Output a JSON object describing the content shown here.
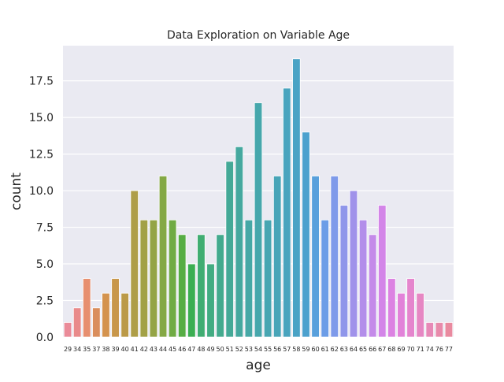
{
  "chart_data": {
    "type": "bar",
    "title": "Data Exploration on Variable Age",
    "xlabel": "age",
    "ylabel": "count",
    "categories": [
      "29",
      "34",
      "35",
      "37",
      "38",
      "39",
      "40",
      "41",
      "42",
      "43",
      "44",
      "45",
      "46",
      "47",
      "48",
      "49",
      "50",
      "51",
      "52",
      "53",
      "54",
      "55",
      "56",
      "57",
      "58",
      "59",
      "60",
      "61",
      "62",
      "63",
      "64",
      "65",
      "66",
      "67",
      "68",
      "69",
      "70",
      "71",
      "74",
      "76",
      "77"
    ],
    "values": [
      1,
      2,
      4,
      2,
      3,
      4,
      3,
      10,
      8,
      8,
      11,
      8,
      7,
      5,
      7,
      5,
      7,
      12,
      13,
      8,
      16,
      8,
      11,
      17,
      19,
      14,
      11,
      8,
      11,
      9,
      10,
      8,
      7,
      9,
      4,
      3,
      4,
      3,
      1,
      1,
      1
    ],
    "ylim": [
      0,
      19.9
    ],
    "yticks": [
      0.0,
      2.5,
      5.0,
      7.5,
      10.0,
      12.5,
      15.0,
      17.5
    ],
    "ytick_labels": [
      "0.0",
      "2.5",
      "5.0",
      "7.5",
      "10.0",
      "12.5",
      "15.0",
      "17.5"
    ],
    "grid": true,
    "colors": {
      "plot_background": "#eaeaf2",
      "grid": "#ffffff",
      "bar_edge": "#ffffff",
      "palette": [
        "#ea8b99",
        "#e98a8a",
        "#e78f6f",
        "#da8e5c",
        "#d4934e",
        "#c8974a",
        "#bb9a48",
        "#ae9e48",
        "#a2a146",
        "#94a446",
        "#84a845",
        "#70ab44",
        "#56ad44",
        "#3bae52",
        "#40ad72",
        "#42ac82",
        "#43aa8e",
        "#44a997",
        "#45a89f",
        "#46a8a6",
        "#46a7ac",
        "#47a6b2",
        "#48a5b8",
        "#49a4be",
        "#4aa3c5",
        "#4ca1ce",
        "#58a0dc",
        "#6c9de7",
        "#7e9aea",
        "#8f96ea",
        "#a092ea",
        "#b38eea",
        "#c48ae9",
        "#d385e8",
        "#dc82e2",
        "#e282d9",
        "#e585cd",
        "#e687c3",
        "#e789b7",
        "#e88aab",
        "#e98a9f"
      ]
    }
  }
}
